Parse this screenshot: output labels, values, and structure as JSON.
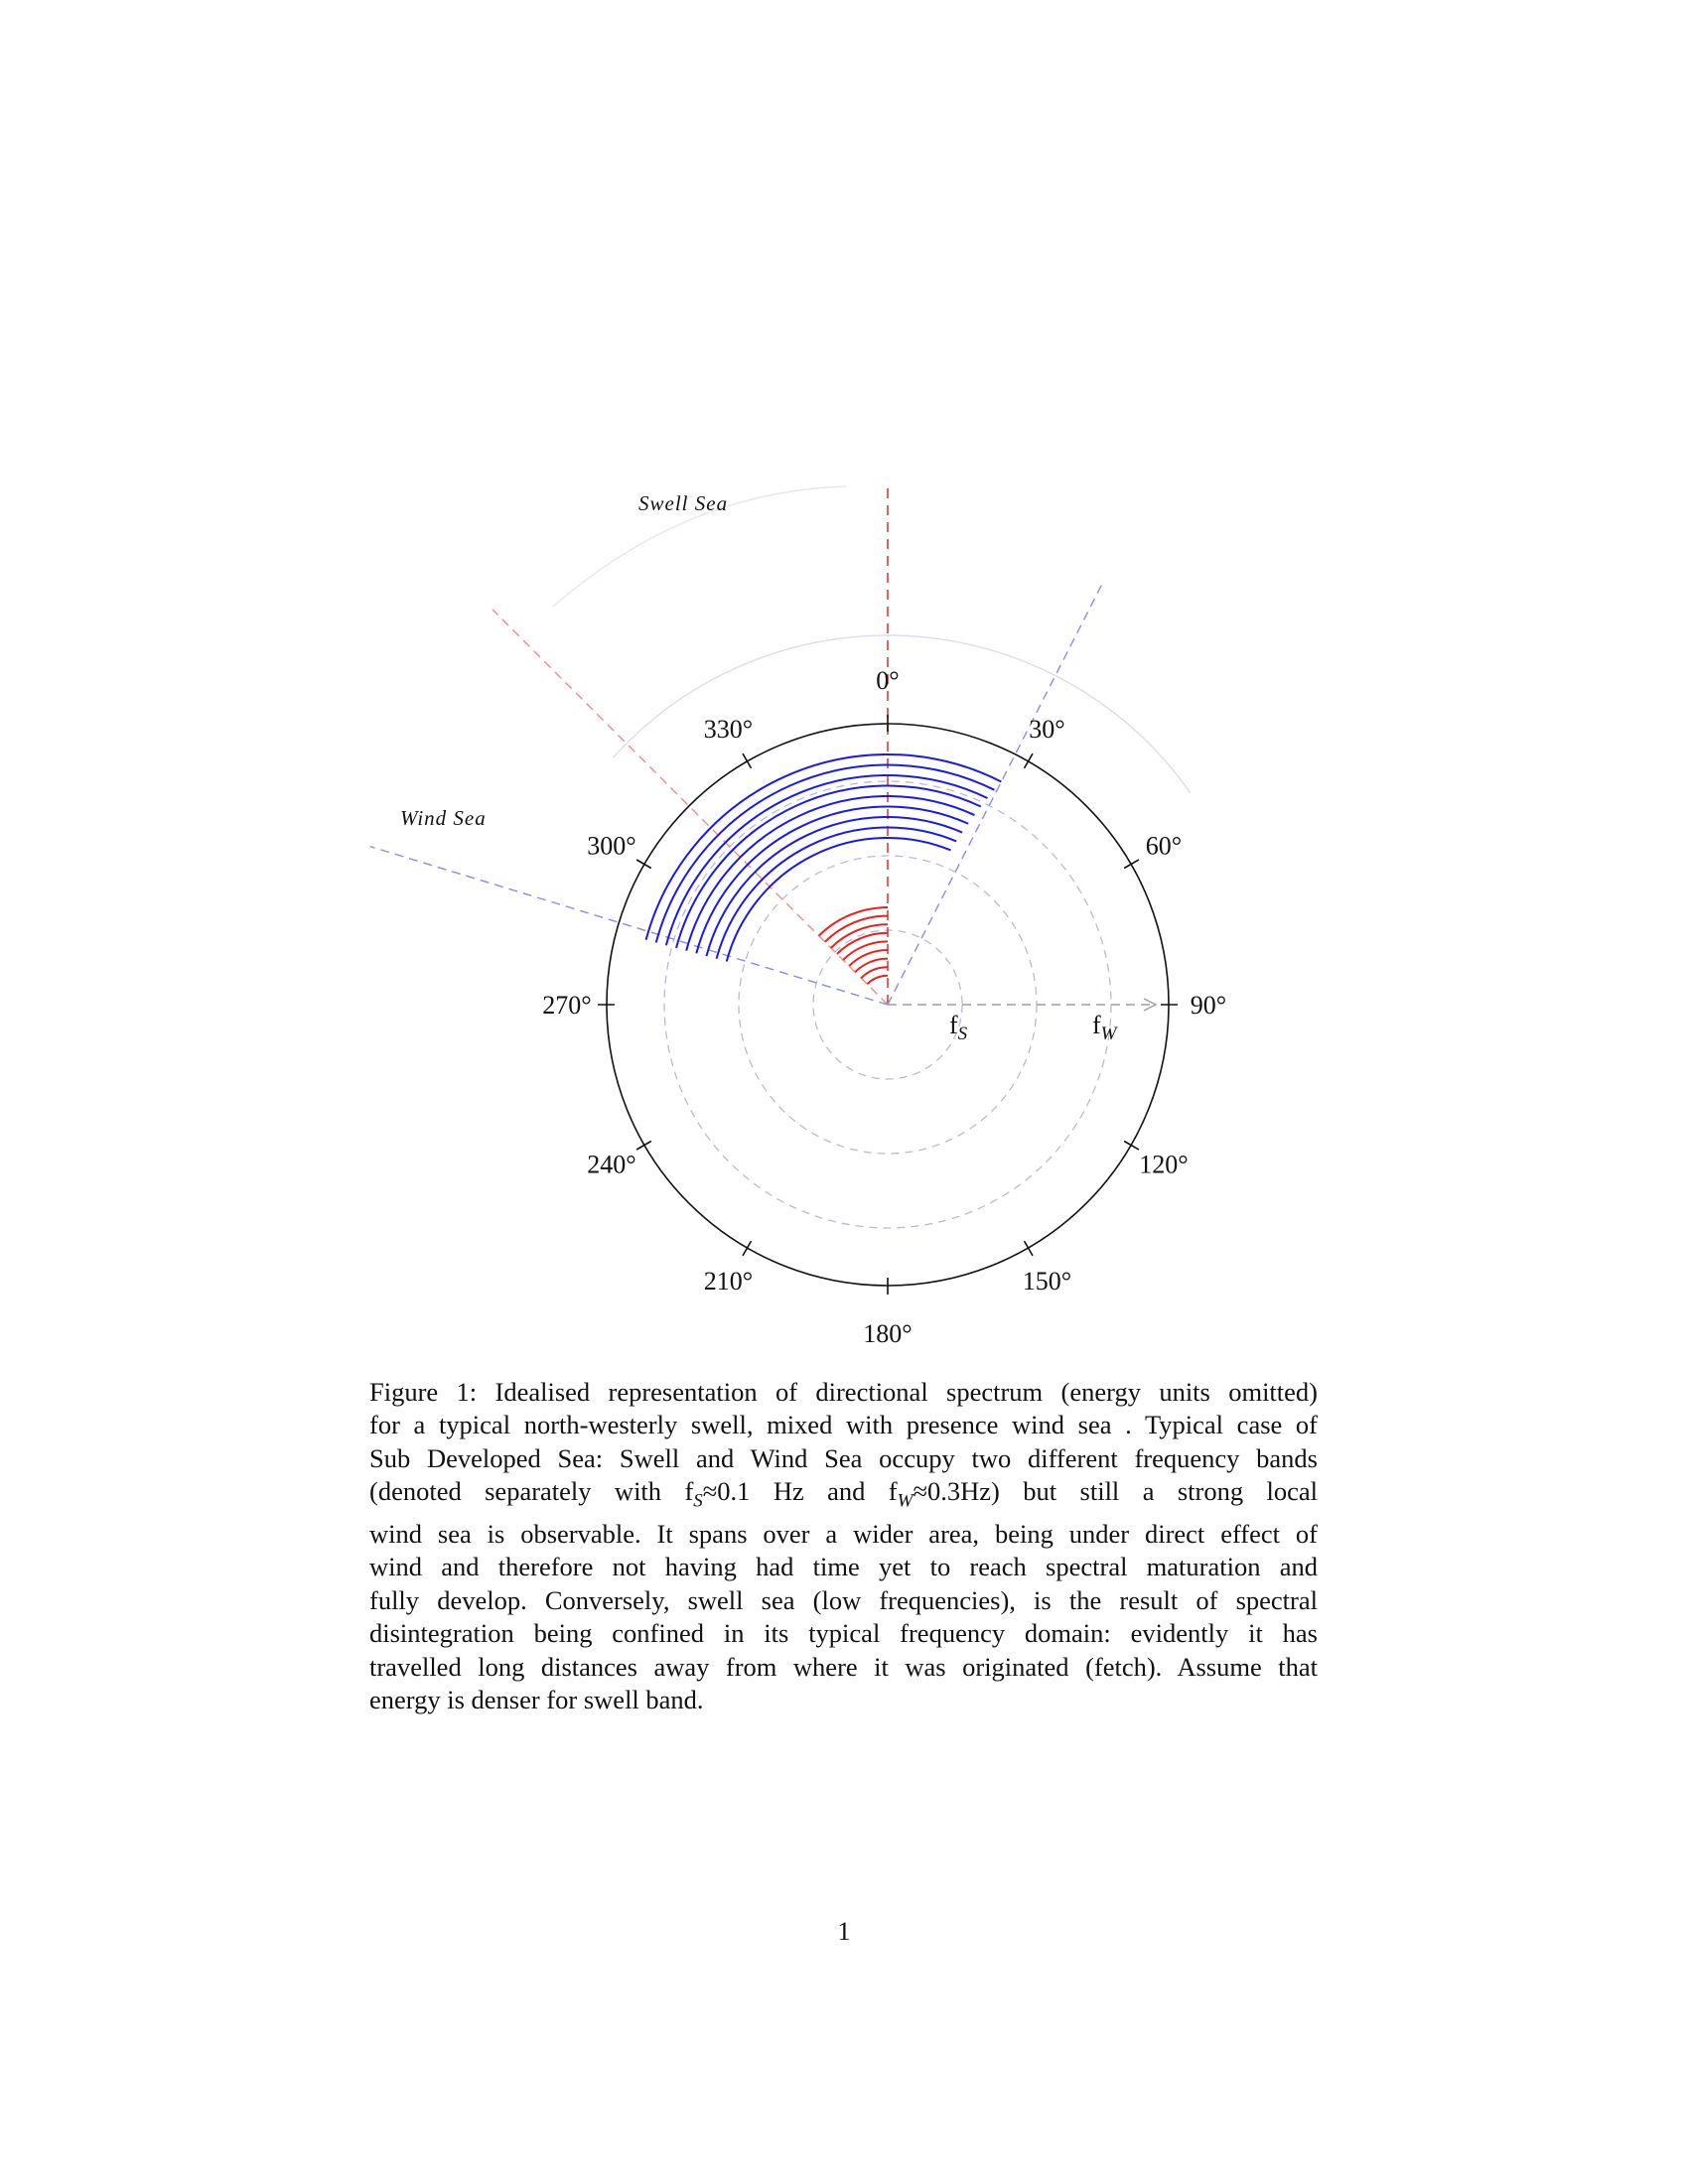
{
  "figure": {
    "compass_labels": [
      "0°",
      "30°",
      "60°",
      "90°",
      "120°",
      "150°",
      "180°",
      "210°",
      "240°",
      "270°",
      "300°",
      "330°"
    ],
    "frequency_labels": {
      "fs": "f",
      "fs_sub": "S",
      "fw": "f",
      "fw_sub": "W"
    },
    "swell_label": "Swell Sea",
    "wind_label": "Wind Sea",
    "colors": {
      "swell": "#e8211d",
      "wind": "#1a1ae6",
      "grid": "#b9bbd6",
      "circle": "#111111"
    }
  },
  "chart_data": {
    "type": "polar",
    "angular_axis": {
      "unit": "degrees",
      "ticks": [
        0,
        30,
        60,
        90,
        120,
        150,
        180,
        210,
        240,
        270,
        300,
        330
      ],
      "zero": "north",
      "direction": "clockwise"
    },
    "radial_axis": {
      "labels": [
        "fS",
        "fW"
      ]
    },
    "series": [
      {
        "name": "Swell Sea",
        "color": "#e8211d",
        "direction_range_deg": [
          315,
          360
        ]
      },
      {
        "name": "Wind Sea",
        "color": "#1a1ae6",
        "direction_range_deg": [
          285,
          387
        ]
      }
    ]
  },
  "caption": {
    "lines": [
      "Figure 1: Idealised representation of directional spectrum (energy units omitted)",
      "for a typical north-westerly swell, mixed with presence wind sea . Typical case of",
      "Sub Developed Sea: Swell and Wind Sea occupy two different frequency bands",
      "(denoted separately with f{S}≈0.1 Hz and f{W}≈0.3Hz) but still a strong local",
      "wind sea is observable. It spans over a wider area, being under direct effect of",
      "wind and therefore not having had time yet to reach spectral maturation and",
      "fully develop. Conversely, swell sea (low frequencies), is the result of spectral",
      "disintegration being confined in its typical frequency domain: evidently it has",
      "travelled long distances away from where it was originated (fetch). Assume that",
      "energy is denser for swell band."
    ],
    "segments_line4": [
      {
        "t": "(denoted separately with f"
      },
      {
        "sub": "S"
      },
      {
        "t": "≈0.1 Hz and f"
      },
      {
        "sub": "W"
      },
      {
        "t": "≈0.3Hz) but still a strong local"
      }
    ]
  },
  "page_number": "1"
}
